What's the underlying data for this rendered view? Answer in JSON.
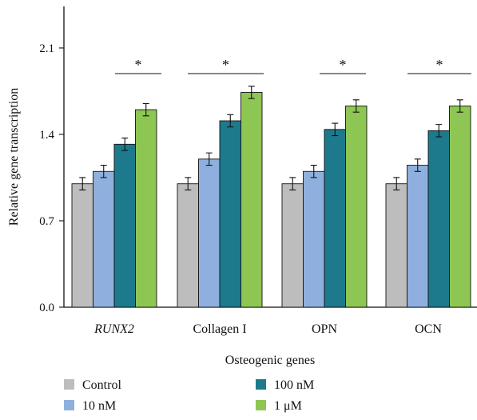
{
  "chart_data": {
    "type": "bar",
    "categories": [
      "RUNX2",
      "Collagen I",
      "OPN",
      "OCN"
    ],
    "italic_categories": [
      "RUNX2"
    ],
    "xlabel": "Osteogenic genes",
    "ylabel": "Relative gene transcription",
    "ylim": [
      0,
      2.5
    ],
    "yticks": [
      0.0,
      0.7,
      1.4,
      2.1
    ],
    "ytick_labels": [
      "0.0",
      "0.7",
      "1.4",
      "2.1"
    ],
    "grid": false,
    "legend_position": "bottom",
    "series": [
      {
        "name": "Control",
        "color": "#bdbdbd",
        "values": [
          1.0,
          1.0,
          1.0,
          1.0
        ],
        "errors": [
          0.05,
          0.05,
          0.05,
          0.05
        ]
      },
      {
        "name": "10 nM",
        "color": "#8fb0de",
        "values": [
          1.1,
          1.2,
          1.1,
          1.15
        ],
        "errors": [
          0.05,
          0.05,
          0.05,
          0.05
        ]
      },
      {
        "name": "100 nM",
        "color": "#1d7a8c",
        "values": [
          1.32,
          1.51,
          1.44,
          1.43
        ],
        "errors": [
          0.05,
          0.05,
          0.05,
          0.05
        ]
      },
      {
        "name": "1 μM",
        "color": "#8dc653",
        "values": [
          1.6,
          1.74,
          1.63,
          1.63
        ],
        "errors": [
          0.05,
          0.05,
          0.05,
          0.05
        ]
      }
    ],
    "annotations": [
      {
        "category": "RUNX2",
        "text": "*"
      },
      {
        "category": "Collagen I",
        "text": "*"
      },
      {
        "category": "OPN",
        "text": "*"
      },
      {
        "category": "OCN",
        "text": "*"
      }
    ]
  }
}
